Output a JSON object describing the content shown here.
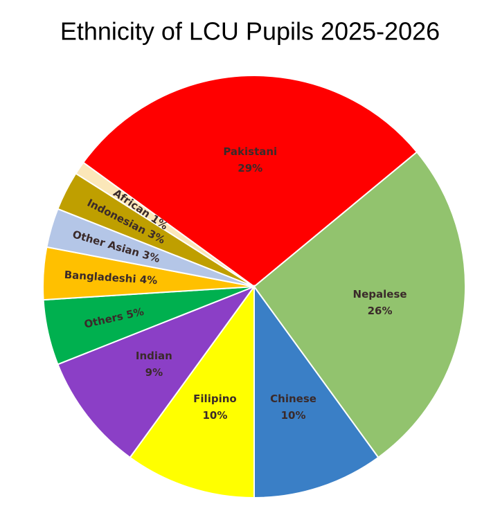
{
  "chart_data": {
    "type": "pie",
    "title": "Ethnicity of LCU Pupils 2025-2026",
    "categories": [
      "Pakistani",
      "Nepalese",
      "Chinese",
      "Filipino",
      "Indian",
      "Others",
      "Bangladeshi",
      "Other Asian",
      "Indonesian",
      "African"
    ],
    "values": [
      29,
      26,
      10,
      10,
      9,
      5,
      4,
      3,
      3,
      1
    ],
    "value_labels": [
      "29%",
      "26%",
      "10%",
      "10%",
      "9%",
      "5%",
      "4%",
      "3%",
      "3%",
      "1%"
    ],
    "colors": [
      "#ff0000",
      "#92c36e",
      "#3a7fc6",
      "#ffff00",
      "#8b3fc6",
      "#00b04f",
      "#ffc000",
      "#b4c6e7",
      "#bf9f00",
      "#fbe7b9"
    ]
  }
}
